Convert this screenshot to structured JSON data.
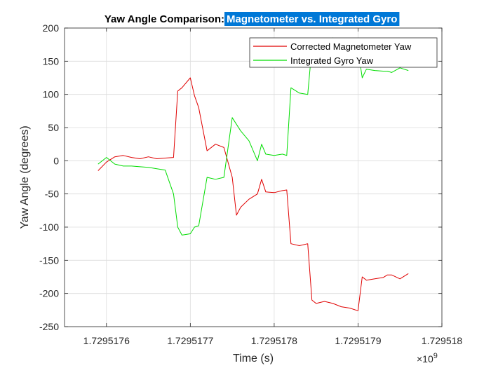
{
  "chart_data": {
    "type": "line",
    "title": "Yaw Angle Comparison:",
    "title_highlight": "Magnetometer vs. Integrated Gyro",
    "xlabel": "Time (s)",
    "ylabel": "Yaw Angle (degrees)",
    "x_exponent_base": "×10",
    "x_exponent": "9",
    "xlim": [
      1.72951755,
      1.729518
    ],
    "ylim": [
      -250,
      200
    ],
    "xticks": [
      1.7295176,
      1.7295177,
      1.7295178,
      1.7295179,
      1.729518
    ],
    "xtick_labels": [
      "1.7295176",
      "1.7295177",
      "1.7295178",
      "1.7295179",
      "1.729518"
    ],
    "yticks": [
      -250,
      -200,
      -150,
      -100,
      -50,
      0,
      50,
      100,
      150,
      200
    ],
    "ytick_labels": [
      "-250",
      "-200",
      "-150",
      "-100",
      "-50",
      "0",
      "50",
      "100",
      "150",
      "200"
    ],
    "grid": true,
    "legend_position": "top-right",
    "series": [
      {
        "name": "Corrected Magnetometer Yaw",
        "color": "#e00000",
        "x": [
          1.72951759,
          1.7295176,
          1.72951761,
          1.72951762,
          1.72951763,
          1.72951764,
          1.72951765,
          1.72951766,
          1.72951767,
          1.72951768,
          1.729517685,
          1.72951769,
          1.7295177,
          1.729517705,
          1.72951771,
          1.72951772,
          1.72951773,
          1.72951774,
          1.72951775,
          1.729517755,
          1.72951776,
          1.72951777,
          1.72951778,
          1.729517785,
          1.72951779,
          1.7295178,
          1.72951781,
          1.729517815,
          1.72951782,
          1.72951783,
          1.72951784,
          1.729517845,
          1.72951785,
          1.72951786,
          1.72951787,
          1.72951788,
          1.72951789,
          1.7295179,
          1.729517905,
          1.72951791,
          1.72951792,
          1.72951793,
          1.729517935,
          1.72951794,
          1.72951795,
          1.72951796
        ],
        "y": [
          -15,
          -2,
          6,
          8,
          5,
          3,
          6,
          3,
          4,
          5,
          105,
          110,
          125,
          98,
          80,
          15,
          25,
          20,
          -25,
          -82,
          -70,
          -58,
          -50,
          -28,
          -47,
          -48,
          -45,
          -44,
          -125,
          -128,
          -125,
          -210,
          -215,
          -212,
          -215,
          -220,
          -222,
          -226,
          -175,
          -180,
          -178,
          -176,
          -172,
          -172,
          -178,
          -170
        ]
      },
      {
        "name": "Integrated Gyro Yaw",
        "color": "#00dd00",
        "x": [
          1.72951759,
          1.7295176,
          1.72951761,
          1.72951762,
          1.72951763,
          1.72951764,
          1.72951765,
          1.72951766,
          1.72951767,
          1.72951768,
          1.729517685,
          1.72951769,
          1.7295177,
          1.729517705,
          1.72951771,
          1.72951772,
          1.72951773,
          1.72951774,
          1.72951775,
          1.729517755,
          1.72951776,
          1.72951777,
          1.72951778,
          1.729517785,
          1.72951779,
          1.7295178,
          1.72951781,
          1.729517815,
          1.72951782,
          1.72951783,
          1.72951784,
          1.729517845,
          1.72951785,
          1.72951786,
          1.72951787,
          1.72951788,
          1.72951789,
          1.7295179,
          1.729517905,
          1.72951791,
          1.72951792,
          1.72951793,
          1.729517935,
          1.72951794,
          1.72951795,
          1.72951796
        ],
        "y": [
          -5,
          5,
          -5,
          -8,
          -8,
          -9,
          -10,
          -12,
          -14,
          -50,
          -100,
          -112,
          -110,
          -100,
          -98,
          -25,
          -28,
          -25,
          65,
          55,
          45,
          30,
          0,
          25,
          10,
          8,
          10,
          8,
          110,
          102,
          100,
          170,
          178,
          182,
          185,
          180,
          175,
          168,
          125,
          138,
          136,
          135,
          135,
          133,
          140,
          136
        ]
      }
    ]
  }
}
